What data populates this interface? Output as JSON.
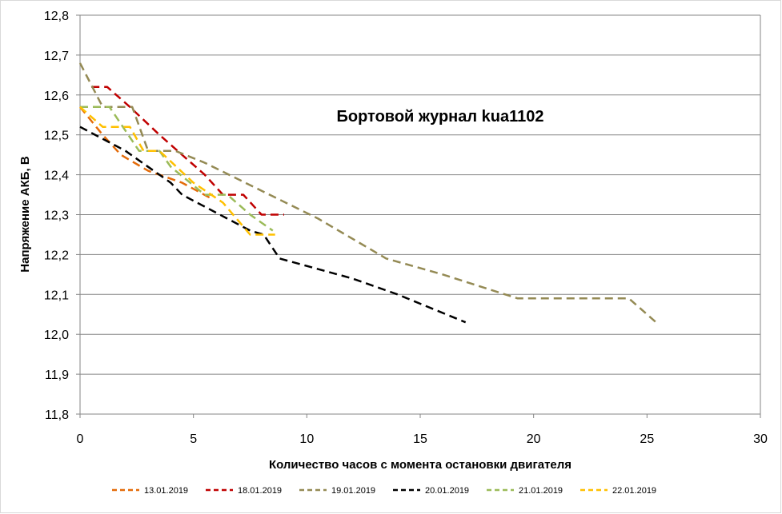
{
  "chart_data": {
    "type": "line",
    "title": "Бортовой журнал kua1102",
    "xlabel": "Количество часов с момента остановки двигателя",
    "ylabel": "Напряжение АКБ, В",
    "xlim": [
      0,
      30
    ],
    "ylim": [
      11.8,
      12.8
    ],
    "x_ticks": [
      "0",
      "5",
      "10",
      "15",
      "20",
      "25",
      "30"
    ],
    "y_ticks": [
      "11,8",
      "11,9",
      "12,0",
      "12,1",
      "12,2",
      "12,3",
      "12,4",
      "12,5",
      "12,6",
      "12,7",
      "12,8"
    ],
    "grid": "horizontal",
    "legend_position": "bottom",
    "series": [
      {
        "name": "13.01.2019",
        "color": "#E46C0A",
        "points": [
          [
            0,
            12.57
          ],
          [
            1,
            12.5
          ],
          [
            1.8,
            12.45
          ],
          [
            3,
            12.41
          ],
          [
            4.5,
            12.38
          ],
          [
            5.8,
            12.34
          ]
        ]
      },
      {
        "name": "18.01.2019",
        "color": "#C00000",
        "points": [
          [
            0.5,
            12.62
          ],
          [
            1.2,
            12.62
          ],
          [
            2.2,
            12.57
          ],
          [
            3.5,
            12.5
          ],
          [
            4.5,
            12.45
          ],
          [
            5.5,
            12.4
          ],
          [
            6.3,
            12.35
          ],
          [
            7.2,
            12.35
          ],
          [
            8,
            12.3
          ],
          [
            9,
            12.3
          ]
        ]
      },
      {
        "name": "19.01.2019",
        "color": "#948A54",
        "points": [
          [
            0,
            12.68
          ],
          [
            1,
            12.57
          ],
          [
            2.3,
            12.57
          ],
          [
            3,
            12.46
          ],
          [
            4.2,
            12.46
          ],
          [
            5.5,
            12.43
          ],
          [
            8,
            12.36
          ],
          [
            10.5,
            12.29
          ],
          [
            13.5,
            12.19
          ],
          [
            16,
            12.15
          ],
          [
            19.3,
            12.09
          ],
          [
            24.2,
            12.09
          ],
          [
            25.4,
            12.03
          ]
        ]
      },
      {
        "name": "20.01.2019",
        "color": "#000000",
        "points": [
          [
            0,
            12.52
          ],
          [
            2,
            12.46
          ],
          [
            4,
            12.38
          ],
          [
            4.5,
            12.35
          ],
          [
            7.5,
            12.26
          ],
          [
            8.1,
            12.25
          ],
          [
            8.8,
            12.19
          ],
          [
            12,
            12.14
          ],
          [
            14,
            12.1
          ],
          [
            17,
            12.03
          ]
        ]
      },
      {
        "name": "21.01.2019",
        "color": "#9BBB59",
        "points": [
          [
            0,
            12.57
          ],
          [
            1.3,
            12.57
          ],
          [
            2.6,
            12.46
          ],
          [
            3.5,
            12.46
          ],
          [
            4,
            12.42
          ],
          [
            5.5,
            12.35
          ],
          [
            6.5,
            12.35
          ],
          [
            7.5,
            12.3
          ],
          [
            8.5,
            12.26
          ]
        ]
      },
      {
        "name": "22.01.2019",
        "color": "#FFC000",
        "points": [
          [
            0,
            12.57
          ],
          [
            1,
            12.52
          ],
          [
            2.2,
            12.52
          ],
          [
            2.8,
            12.46
          ],
          [
            3.5,
            12.46
          ],
          [
            5,
            12.38
          ],
          [
            6.3,
            12.33
          ],
          [
            7.5,
            12.25
          ],
          [
            8.6,
            12.25
          ]
        ]
      }
    ]
  }
}
